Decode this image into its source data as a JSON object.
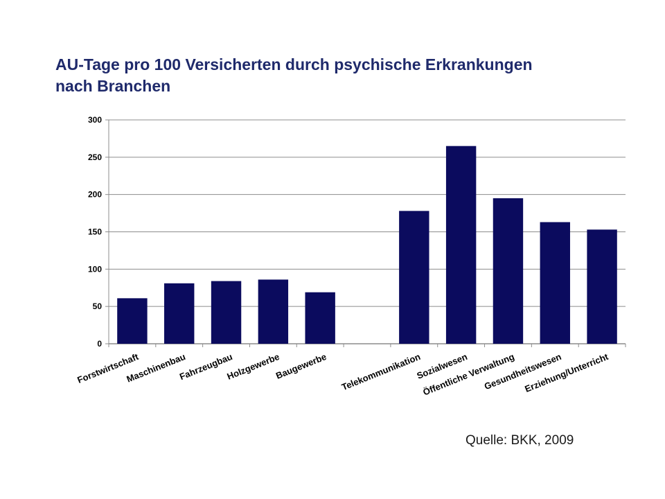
{
  "chart_data": {
    "type": "bar",
    "title_lines": [
      "AU-Tage pro 100 Versicherten durch psychische Erkrankungen",
      "nach Branchen"
    ],
    "categories": [
      "Forstwirtschaft",
      "Maschinenbau",
      "Fahrzeugbau",
      "Holzgewerbe",
      "Baugewerbe",
      "",
      "Telekommunikation",
      "Sozialwesen",
      "Öffentliche Verwaltung",
      "Gesundheitswesen",
      "Erziehung/Unterricht"
    ],
    "values": [
      61,
      81,
      84,
      86,
      69,
      null,
      178,
      265,
      195,
      163,
      153
    ],
    "ylim": [
      0,
      300
    ],
    "yticks": [
      "0",
      "50",
      "100",
      "150",
      "200",
      "250",
      "300"
    ],
    "grid": true,
    "bar_color": "#0b0b5e",
    "source": "Quelle: BKK, 2009"
  }
}
